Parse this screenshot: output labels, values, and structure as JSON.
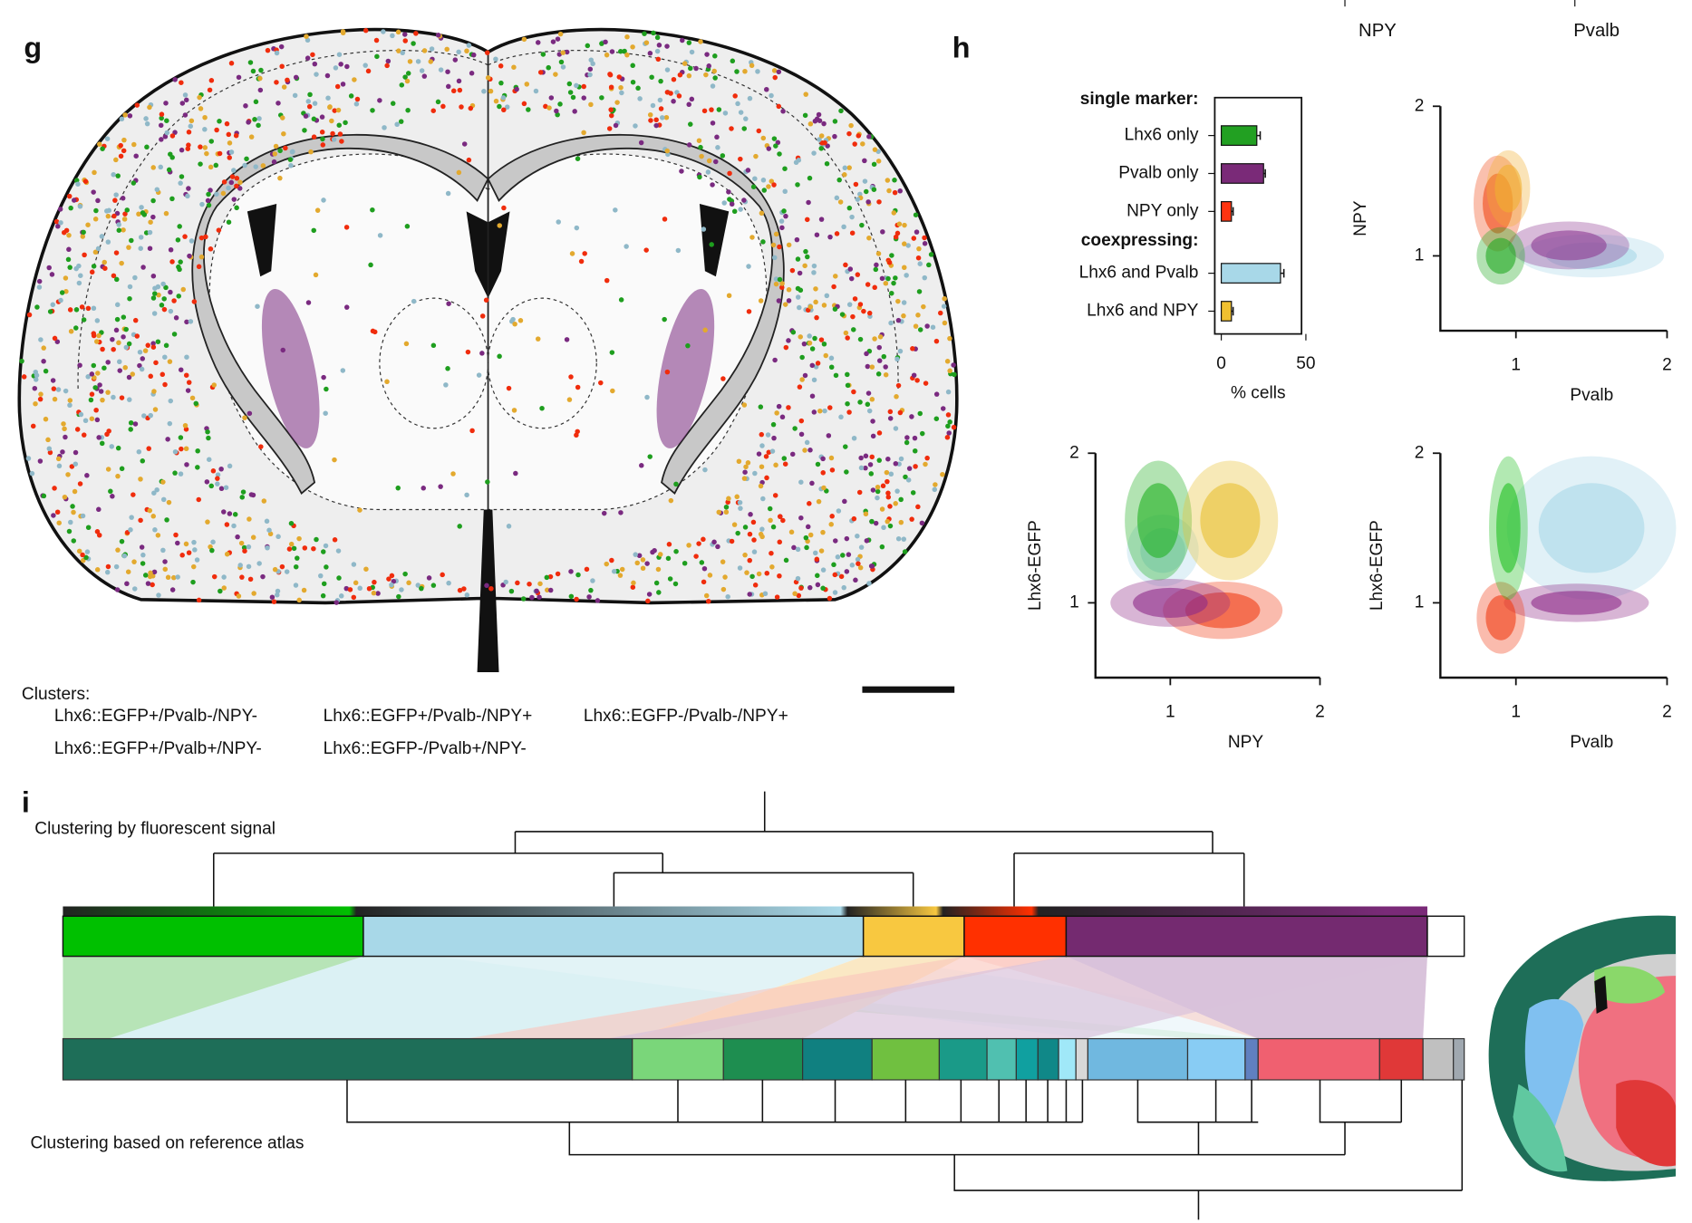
{
  "figure": {
    "panel_g": "g",
    "panel_h": "h",
    "panel_i": "i",
    "cropped_axis_titles": [
      "NPY",
      "Pvalb"
    ],
    "clusters_title": "Clusters:",
    "clusters": [
      {
        "label": "Lhx6::EGFP+/Pvalb-/NPY-",
        "color": "#1e9e1e"
      },
      {
        "label": "Lhx6::EGFP+/Pvalb-/NPY+",
        "color": "#e3a92e"
      },
      {
        "label": "Lhx6::EGFP-/Pvalb-/NPY+",
        "color": "#f02c0c"
      },
      {
        "label": "Lhx6::EGFP+/Pvalb+/NPY-",
        "color": "#8fb8c8"
      },
      {
        "label": "Lhx6::EGFP-/Pvalb+/NPY-",
        "color": "#7a2a80"
      }
    ],
    "dendrogram_top": "Clustering by fluorescent signal",
    "dendrogram_bottom": "Clustering based on reference atlas"
  },
  "chart_data": [
    {
      "type": "bar",
      "orientation": "horizontal",
      "group_labels": [
        "single marker:",
        "coexpressing:"
      ],
      "categories": [
        "Lhx6 only",
        "Pvalb only",
        "NPY only",
        "Lhx6 and Pvalb",
        "Lhx6 and NPY"
      ],
      "values": [
        21,
        25,
        6,
        35,
        6
      ],
      "errors": [
        2,
        1,
        1,
        2,
        1
      ],
      "colors": [
        "#22a022",
        "#7a2a78",
        "#ff3410",
        "#a8d8e8",
        "#f0c030"
      ],
      "label_colors": [
        "#1e9e1e",
        "#7a2a80",
        "#f02c0c",
        "#7fa8b8",
        "#e3a92e"
      ],
      "xlabel": "% cells",
      "xlim": [
        0,
        50
      ],
      "xticks": [
        0,
        50
      ]
    },
    {
      "type": "scatter",
      "xlabel": "Pvalb",
      "ylabel": "NPY",
      "xlim": [
        0.5,
        2
      ],
      "ylim": [
        0.5,
        2
      ],
      "xticks": [
        1,
        2
      ],
      "yticks": [
        1,
        2
      ],
      "clusters": [
        {
          "color": "#a8d8e8",
          "x": 1.5,
          "y": 1.0,
          "sx": 0.3,
          "sy": 0.09
        },
        {
          "color": "#8e3a92",
          "x": 1.35,
          "y": 1.07,
          "sx": 0.25,
          "sy": 0.1
        },
        {
          "color": "#f04a18",
          "x": 0.88,
          "y": 1.35,
          "sx": 0.1,
          "sy": 0.2
        },
        {
          "color": "#f0b030",
          "x": 0.95,
          "y": 1.45,
          "sx": 0.09,
          "sy": 0.16
        },
        {
          "color": "#22a822",
          "x": 0.9,
          "y": 1.0,
          "sx": 0.1,
          "sy": 0.12
        }
      ]
    },
    {
      "type": "scatter",
      "xlabel": "NPY",
      "ylabel": "Lhx6-EGFP",
      "xlim": [
        0.5,
        2
      ],
      "ylim": [
        0.5,
        2
      ],
      "xticks": [
        1,
        2
      ],
      "yticks": [
        1,
        2
      ],
      "clusters": [
        {
          "color": "#a8d8e8",
          "x": 0.95,
          "y": 1.35,
          "sx": 0.15,
          "sy": 0.15
        },
        {
          "color": "#22b022",
          "x": 0.92,
          "y": 1.55,
          "sx": 0.14,
          "sy": 0.25
        },
        {
          "color": "#e8c030",
          "x": 1.4,
          "y": 1.55,
          "sx": 0.2,
          "sy": 0.25
        },
        {
          "color": "#f03c14",
          "x": 1.35,
          "y": 0.95,
          "sx": 0.25,
          "sy": 0.12
        },
        {
          "color": "#8e2a88",
          "x": 1.0,
          "y": 1.0,
          "sx": 0.25,
          "sy": 0.1
        }
      ]
    },
    {
      "type": "scatter",
      "xlabel": "Pvalb",
      "ylabel": "Lhx6-EGFP",
      "xlim": [
        0.5,
        2
      ],
      "ylim": [
        0.5,
        2
      ],
      "xticks": [
        1,
        2
      ],
      "yticks": [
        1,
        2
      ],
      "clusters": [
        {
          "color": "#a8d8e8",
          "x": 1.5,
          "y": 1.5,
          "sx": 0.35,
          "sy": 0.3
        },
        {
          "color": "#8e2a88",
          "x": 1.4,
          "y": 1.0,
          "sx": 0.3,
          "sy": 0.08
        },
        {
          "color": "#f03c14",
          "x": 0.9,
          "y": 0.9,
          "sx": 0.1,
          "sy": 0.15
        },
        {
          "color": "#22c022",
          "x": 0.95,
          "y": 1.5,
          "sx": 0.08,
          "sy": 0.3
        }
      ]
    }
  ]
}
